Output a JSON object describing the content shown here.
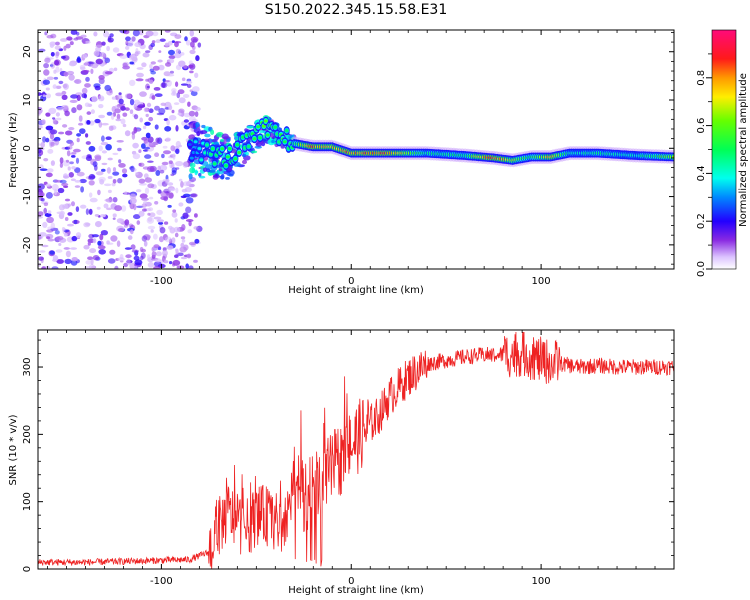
{
  "figure": {
    "title": "S150.2022.345.15.58.E31"
  },
  "chart_data": [
    {
      "type": "heatmap",
      "xlabel": "Height of straight line (km)",
      "ylabel": "Frequency (Hz)",
      "xlim": [
        -165,
        170
      ],
      "ylim": [
        -25,
        24.5
      ],
      "xticks": [
        -100,
        0,
        100
      ],
      "yticks": [
        -20,
        -10,
        0,
        10,
        20
      ],
      "colorbar": {
        "label": "Normalized spectral amplitude",
        "range": [
          0,
          1
        ],
        "ticks": [
          0.0,
          0.2,
          0.4,
          0.6,
          0.8
        ],
        "colormap": "gist_rainbow"
      },
      "ridge": {
        "x": [
          -85,
          -75,
          -65,
          -55,
          -45,
          -38,
          -30,
          -20,
          -10,
          0,
          20,
          40,
          60,
          75,
          85,
          95,
          105,
          115,
          130,
          150,
          170
        ],
        "freq": [
          0,
          -1,
          -2,
          1,
          4,
          2.5,
          1,
          0.3,
          0.3,
          -1,
          -1,
          -1,
          -1.5,
          -2,
          -2.5,
          -1.8,
          -1.8,
          -1,
          -1,
          -1.5,
          -1.8
        ],
        "amplitude": [
          0.3,
          0.5,
          0.55,
          0.55,
          0.6,
          0.55,
          0.55,
          0.9,
          0.8,
          0.9,
          0.9,
          0.5,
          0.55,
          0.95,
          0.7,
          0.55,
          0.85,
          0.45,
          0.5,
          0.45,
          0.7
        ]
      }
    },
    {
      "type": "line",
      "xlabel": "Height of straight line (km)",
      "ylabel": "SNR (10 * v/v)",
      "xlim": [
        -165,
        170
      ],
      "ylim": [
        0,
        355
      ],
      "xticks": [
        -100,
        0,
        100
      ],
      "yticks": [
        0,
        100,
        200,
        300
      ],
      "series": [
        {
          "color": "#ee2222",
          "x": [
            -165,
            -140,
            -110,
            -85,
            -75,
            -70,
            -65,
            -60,
            -55,
            -50,
            -45,
            -40,
            -35,
            -30,
            -25,
            -20,
            -15,
            -10,
            -5,
            0,
            5,
            10,
            15,
            20,
            25,
            30,
            40,
            50,
            60,
            70,
            80,
            90,
            100,
            110,
            120,
            130,
            140,
            150,
            160,
            170
          ],
          "y": [
            10,
            10,
            12,
            14,
            25,
            60,
            85,
            70,
            60,
            80,
            80,
            70,
            60,
            135,
            110,
            115,
            130,
            150,
            165,
            185,
            200,
            215,
            230,
            255,
            270,
            285,
            305,
            310,
            315,
            318,
            318,
            320,
            310,
            305,
            300,
            302,
            300,
            300,
            300,
            300
          ]
        }
      ]
    }
  ]
}
